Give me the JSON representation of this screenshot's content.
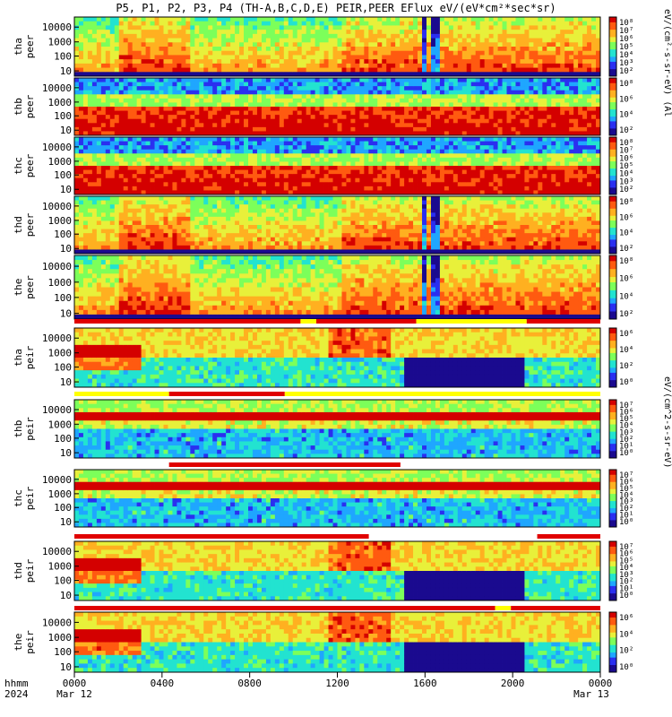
{
  "title": "P5, P1, P2, P3, P4 (TH-A,B,C,D,E) PEIR,PEER EFlux eV/(eV*cm²*sec*sr)",
  "colorbar_label_top": "eV/(cm²-s-sr-eV)",
  "colorbar_label_bottom": "eV/(cm^2-s-sr-eV)",
  "colorbar_suffix": "(Al",
  "time_axis": {
    "corner_top": "hhmm",
    "corner_bottom": "2024",
    "start_date": "Mar 12",
    "end_date": "Mar 13"
  },
  "chart_data": {
    "type": "heatmap",
    "x_ticks": [
      "0000",
      "0400",
      "0800",
      "1200",
      "1600",
      "2000",
      "0000"
    ],
    "y_scale": "log",
    "y_ticks": [
      "10",
      "100",
      "1000",
      "10000"
    ],
    "panels": [
      {
        "id": "tha_peer",
        "probe": "tha",
        "species": "peer",
        "colorbar": [
          "10^2",
          "10^3",
          "10^4",
          "10^5",
          "10^6",
          "10^7",
          "10^8"
        ]
      },
      {
        "id": "thb_peer",
        "probe": "thb",
        "species": "peer",
        "colorbar": [
          "10^2",
          "10^4",
          "10^6",
          "10^8"
        ]
      },
      {
        "id": "thc_peer",
        "probe": "thc",
        "species": "peer",
        "colorbar": [
          "10^2",
          "10^3",
          "10^4",
          "10^5",
          "10^6",
          "10^7",
          "10^8"
        ]
      },
      {
        "id": "thd_peer",
        "probe": "thd",
        "species": "peer",
        "colorbar": [
          "10^2",
          "10^4",
          "10^6",
          "10^8"
        ]
      },
      {
        "id": "the_peer",
        "probe": "the",
        "species": "peer",
        "colorbar": [
          "10^2",
          "10^4",
          "10^6",
          "10^8"
        ]
      },
      {
        "id": "tha_peir",
        "probe": "tha",
        "species": "peir",
        "colorbar": [
          "10^0",
          "10^2",
          "10^4",
          "10^6"
        ]
      },
      {
        "id": "thb_peir",
        "probe": "thb",
        "species": "peir",
        "colorbar": [
          "10^0",
          "10^1",
          "10^2",
          "10^3",
          "10^4",
          "10^5",
          "10^6",
          "10^7"
        ]
      },
      {
        "id": "thc_peir",
        "probe": "thc",
        "species": "peir",
        "colorbar": [
          "10^0",
          "10^1",
          "10^2",
          "10^3",
          "10^4",
          "10^5",
          "10^6",
          "10^7"
        ]
      },
      {
        "id": "thd_peir",
        "probe": "thd",
        "species": "peir",
        "colorbar": [
          "10^0",
          "10^1",
          "10^2",
          "10^3",
          "10^4",
          "10^5",
          "10^6",
          "10^7"
        ]
      },
      {
        "id": "the_peir",
        "probe": "the",
        "species": "peir",
        "colorbar": [
          "10^0",
          "10^2",
          "10^4",
          "10^6"
        ]
      }
    ],
    "colormap": [
      "#1a0a8f",
      "#2a2ff0",
      "#1fa6ff",
      "#22e3d0",
      "#7cff5a",
      "#e8f03a",
      "#ffb020",
      "#ff5a10",
      "#d40000"
    ]
  }
}
